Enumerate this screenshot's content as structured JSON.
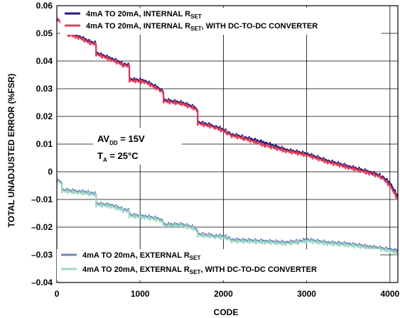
{
  "chart_data": {
    "type": "line",
    "xlabel": "CODE",
    "ylabel": "TOTAL UNADJUSTED ERROR (%FSR)",
    "xlim": [
      0,
      4095
    ],
    "ylim": [
      -0.04,
      0.06
    ],
    "x_ticks": [
      0,
      1000,
      2000,
      3000,
      4000
    ],
    "x_tick_labels": [
      "0",
      "1000",
      "2000",
      "3000",
      "4000"
    ],
    "y_ticks": [
      0.06,
      0.05,
      0.04,
      0.03,
      0.02,
      0.01,
      0,
      -0.01,
      -0.02,
      -0.03,
      -0.04
    ],
    "y_tick_labels": [
      "0.06",
      "0.05",
      "0.04",
      "0.03",
      "0.02",
      "0.01",
      "0",
      "–0.01",
      "–0.02",
      "–0.03",
      "–0.04"
    ],
    "x_gridlines": [
      0,
      1000,
      2000,
      3000,
      4000
    ],
    "grid": true,
    "legend_top": [
      {
        "main": "4mA TO 20mA, INTERNAL R",
        "sub": "SET",
        "rest": "",
        "color": "#2a1a7a"
      },
      {
        "main": "4mA TO 20mA, INTERNAL R",
        "sub": "SET",
        "rest": ", WITH DC-TO-DC CONVERTER",
        "color": "#e0405a"
      }
    ],
    "legend_bottom": [
      {
        "main": "4mA TO 20mA, EXTERNAL R",
        "sub": "SET",
        "rest": "",
        "color": "#6f88b8"
      },
      {
        "main": "4mA TO 20mA, EXTERNAL R",
        "sub": "SET",
        "rest": ", WITH DC-TO-DC CONVERTER",
        "color": "#9fd8c4"
      }
    ],
    "annotation": {
      "line1_main": "AV",
      "line1_sub": "DD",
      "line1_rest": " = 15V",
      "line2_main": "T",
      "line2_sub": "A",
      "line2_rest": " = 25°C"
    },
    "series": [
      {
        "color": "#2a1a7a",
        "x": [
          0,
          60,
          61,
          150,
          260,
          400,
          470,
          471,
          650,
          800,
          870,
          871,
          1050,
          1240,
          1280,
          1281,
          1500,
          1640,
          1690,
          1691,
          1900,
          2050,
          2100,
          2250,
          2500,
          2750,
          3000,
          3250,
          3500,
          3750,
          3900,
          4000,
          4095
        ],
        "values": [
          0.055,
          0.054,
          0.051,
          0.05,
          0.049,
          0.047,
          0.0465,
          0.043,
          0.041,
          0.039,
          0.0385,
          0.0335,
          0.033,
          0.03,
          0.029,
          0.026,
          0.025,
          0.0235,
          0.0225,
          0.018,
          0.0165,
          0.0145,
          0.0135,
          0.0125,
          0.0105,
          0.008,
          0.0065,
          0.004,
          0.002,
          0.0,
          -0.0015,
          -0.004,
          -0.009
        ]
      },
      {
        "color": "#e0405a",
        "x": [
          0,
          60,
          61,
          150,
          260,
          400,
          470,
          471,
          650,
          800,
          870,
          871,
          1050,
          1240,
          1280,
          1281,
          1500,
          1640,
          1690,
          1691,
          1900,
          2050,
          2100,
          2250,
          2500,
          2750,
          3000,
          3250,
          3500,
          3750,
          3900,
          4000,
          4095
        ],
        "values": [
          0.0555,
          0.0535,
          0.0505,
          0.0495,
          0.0485,
          0.0465,
          0.046,
          0.0425,
          0.0405,
          0.0385,
          0.038,
          0.033,
          0.0325,
          0.0295,
          0.0285,
          0.0255,
          0.0245,
          0.023,
          0.022,
          0.0175,
          0.016,
          0.014,
          0.013,
          0.012,
          0.0095,
          0.0075,
          0.006,
          0.0035,
          0.0015,
          -0.0005,
          -0.002,
          -0.005,
          -0.01
        ]
      },
      {
        "color": "#6f88b8",
        "x": [
          0,
          60,
          61,
          250,
          400,
          470,
          471,
          650,
          800,
          870,
          871,
          1050,
          1240,
          1280,
          1281,
          1500,
          1640,
          1690,
          1691,
          1900,
          2050,
          2100,
          2500,
          2750,
          2900,
          3000,
          3250,
          3500,
          3750,
          4000,
          4095
        ],
        "values": [
          -0.003,
          -0.0035,
          -0.0065,
          -0.007,
          -0.0075,
          -0.008,
          -0.0115,
          -0.012,
          -0.0135,
          -0.014,
          -0.0155,
          -0.016,
          -0.017,
          -0.018,
          -0.019,
          -0.019,
          -0.02,
          -0.021,
          -0.0225,
          -0.023,
          -0.0235,
          -0.0245,
          -0.025,
          -0.0255,
          -0.025,
          -0.0245,
          -0.0255,
          -0.026,
          -0.027,
          -0.028,
          -0.0285
        ]
      },
      {
        "color": "#9fd8c4",
        "x": [
          0,
          60,
          61,
          250,
          400,
          470,
          471,
          650,
          800,
          870,
          871,
          1050,
          1240,
          1280,
          1281,
          1500,
          1640,
          1690,
          1691,
          1900,
          2050,
          2100,
          2500,
          2750,
          2900,
          3000,
          3250,
          3500,
          3750,
          4000,
          4095
        ],
        "values": [
          -0.0035,
          -0.004,
          -0.007,
          -0.0075,
          -0.008,
          -0.0085,
          -0.012,
          -0.0125,
          -0.014,
          -0.0145,
          -0.016,
          -0.0165,
          -0.0175,
          -0.0185,
          -0.0195,
          -0.0195,
          -0.0205,
          -0.0215,
          -0.023,
          -0.0235,
          -0.024,
          -0.025,
          -0.0255,
          -0.026,
          -0.0255,
          -0.025,
          -0.026,
          -0.0265,
          -0.0275,
          -0.0285,
          -0.0295
        ]
      }
    ]
  }
}
